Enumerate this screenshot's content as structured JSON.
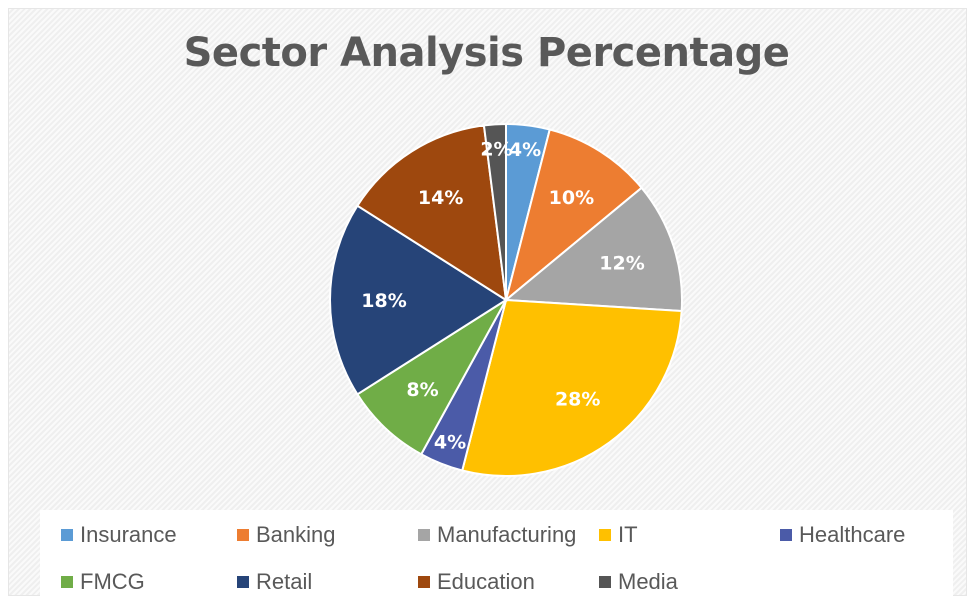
{
  "chart_data": {
    "type": "pie",
    "title": "Sector Analysis Percentage",
    "categories": [
      "Insurance",
      "Banking",
      "Manufacturing",
      "IT",
      "Healthcare",
      "FMCG",
      "Retail",
      "Education",
      "Media"
    ],
    "values": [
      4,
      10,
      12,
      28,
      4,
      8,
      18,
      14,
      2
    ],
    "data_labels": [
      "4%",
      "10%",
      "12%",
      "28%",
      "4%",
      "8%",
      "18%",
      "14%",
      "2%"
    ],
    "colors": [
      "#5B9BD5",
      "#ED7D31",
      "#A5A5A5",
      "#FFC000",
      "#4B5BA8",
      "#70AD47",
      "#264478",
      "#9E480E",
      "#555555"
    ],
    "legend_position": "bottom"
  }
}
